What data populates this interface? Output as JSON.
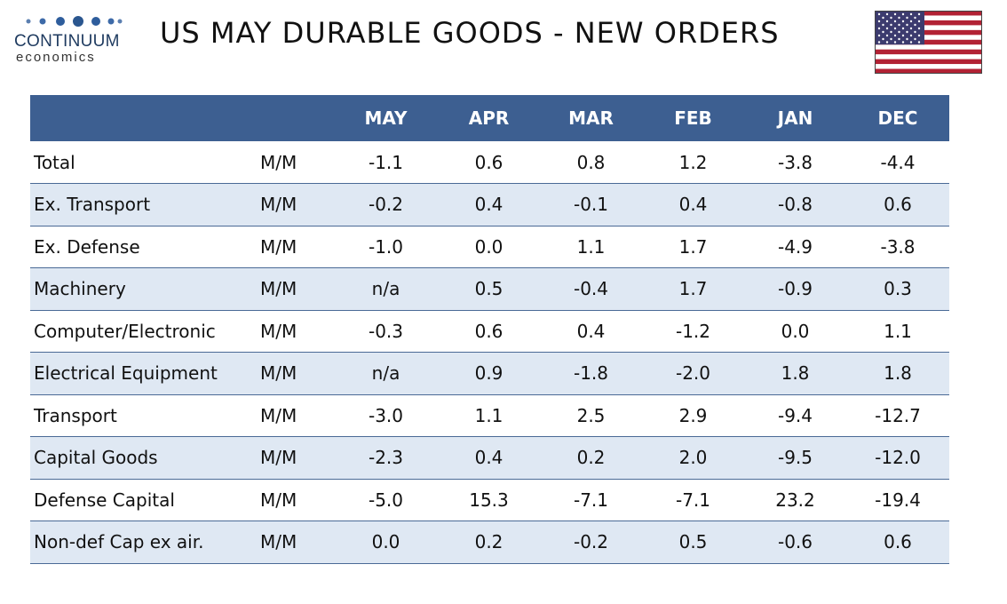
{
  "brand": {
    "name": "CONTINUUM",
    "sub": "economics"
  },
  "title": "US MAY DURABLE GOODS - NEW ORDERS",
  "colors": {
    "header_bg": "#3d5f91",
    "stripe": "#dfe8f3",
    "rule": "#4a6a96",
    "brand": "#1e3a5f"
  },
  "table": {
    "columns": [
      "MAY",
      "APR",
      "MAR",
      "FEB",
      "JAN",
      "DEC"
    ],
    "rows": [
      {
        "label": "Total",
        "unit": "M/M",
        "values": [
          "-1.1",
          "0.6",
          "0.8",
          "1.2",
          "-3.8",
          "-4.4"
        ]
      },
      {
        "label": "Ex. Transport",
        "unit": "M/M",
        "values": [
          "-0.2",
          "0.4",
          "-0.1",
          "0.4",
          "-0.8",
          "0.6"
        ]
      },
      {
        "label": "Ex. Defense",
        "unit": "M/M",
        "values": [
          "-1.0",
          "0.0",
          "1.1",
          "1.7",
          "-4.9",
          "-3.8"
        ]
      },
      {
        "label": "Machinery",
        "unit": "M/M",
        "values": [
          "n/a",
          "0.5",
          "-0.4",
          "1.7",
          "-0.9",
          "0.3"
        ]
      },
      {
        "label": "Computer/Electronic",
        "unit": "M/M",
        "values": [
          "-0.3",
          "0.6",
          "0.4",
          "-1.2",
          "0.0",
          "1.1"
        ]
      },
      {
        "label": "Electrical Equipment",
        "unit": "M/M",
        "values": [
          "n/a",
          "0.9",
          "-1.8",
          "-2.0",
          "1.8",
          "1.8"
        ]
      },
      {
        "label": "Transport",
        "unit": "M/M",
        "values": [
          "-3.0",
          "1.1",
          "2.5",
          "2.9",
          "-9.4",
          "-12.7"
        ]
      },
      {
        "label": "Capital Goods",
        "unit": "M/M",
        "values": [
          "-2.3",
          "0.4",
          "0.2",
          "2.0",
          "-9.5",
          "-12.0"
        ]
      },
      {
        "label": "Defense Capital",
        "unit": "M/M",
        "values": [
          "-5.0",
          "15.3",
          "-7.1",
          "-7.1",
          "23.2",
          "-19.4"
        ]
      },
      {
        "label": "Non-def Cap ex air.",
        "unit": "M/M",
        "values": [
          "0.0",
          "0.2",
          "-0.2",
          "0.5",
          "-0.6",
          "0.6"
        ]
      }
    ]
  }
}
